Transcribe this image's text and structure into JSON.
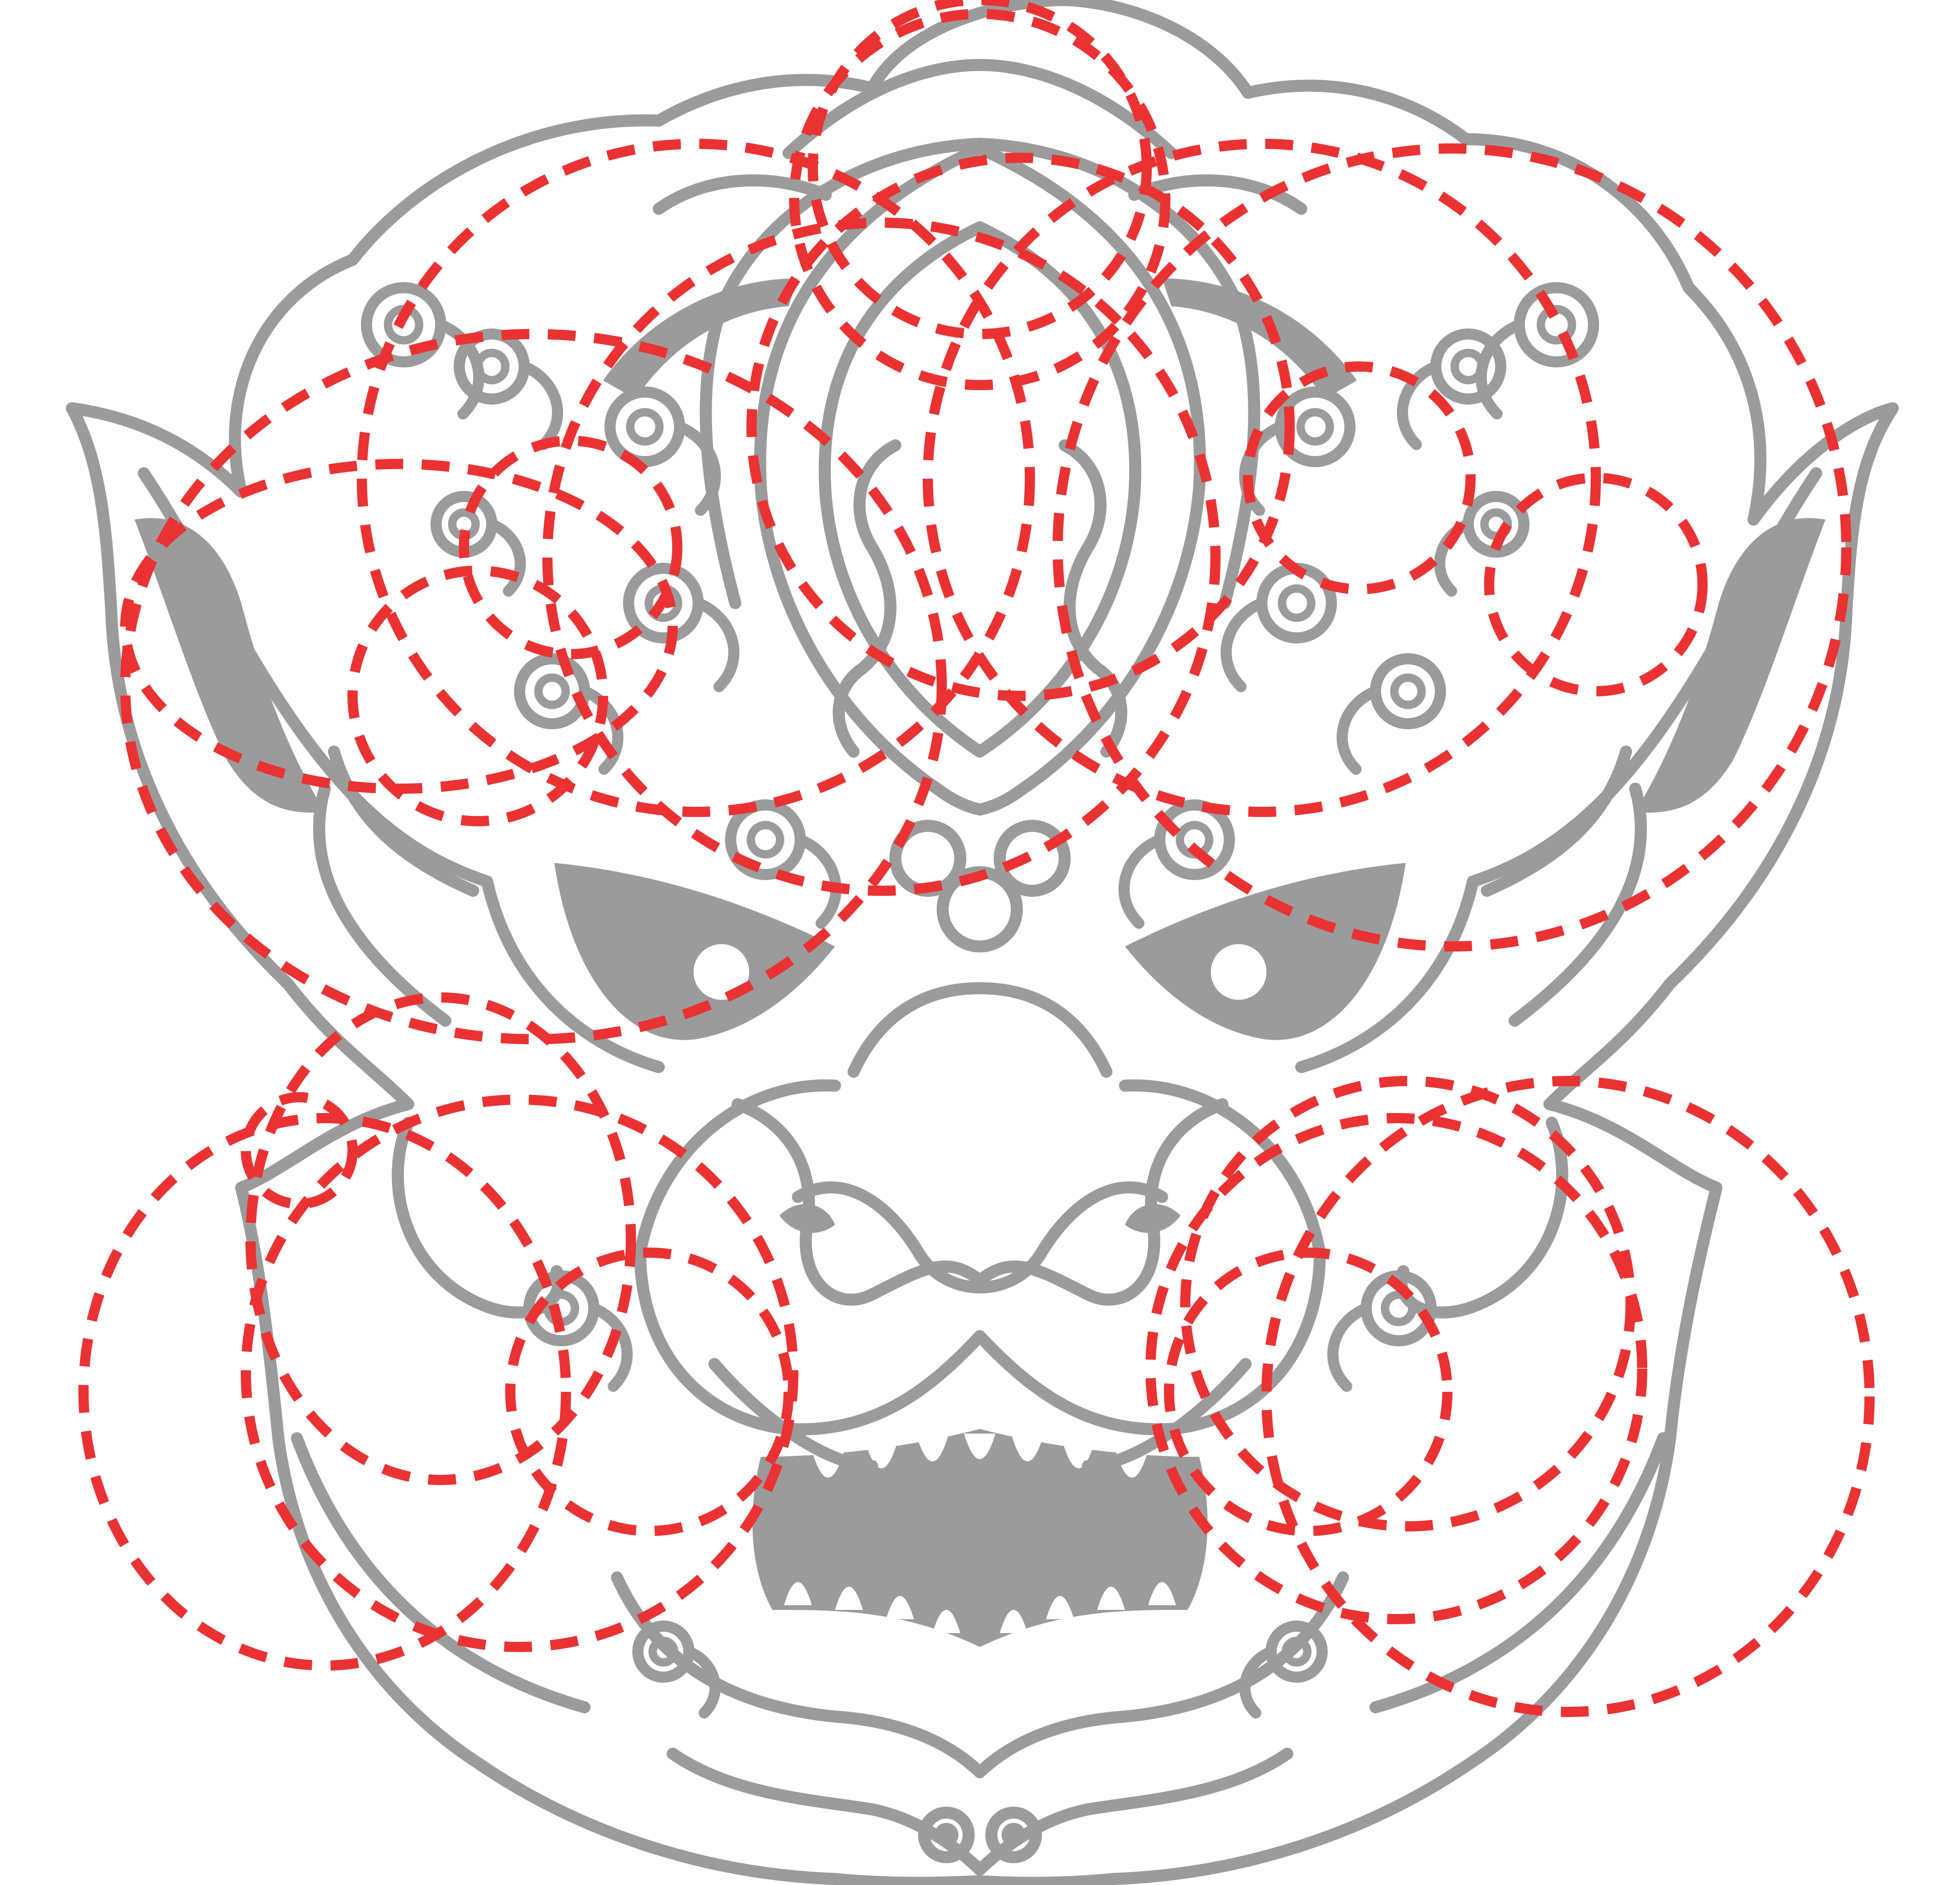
{
  "figure": {
    "subject": "mask-ornament-line-art",
    "colors": {
      "background": "#ffffff",
      "art_stroke": "#9b9b9b",
      "art_fill": "#9b9b9b",
      "guide_stroke": "#ea3233"
    },
    "guide_style": "dashed",
    "guide_count": 22
  }
}
